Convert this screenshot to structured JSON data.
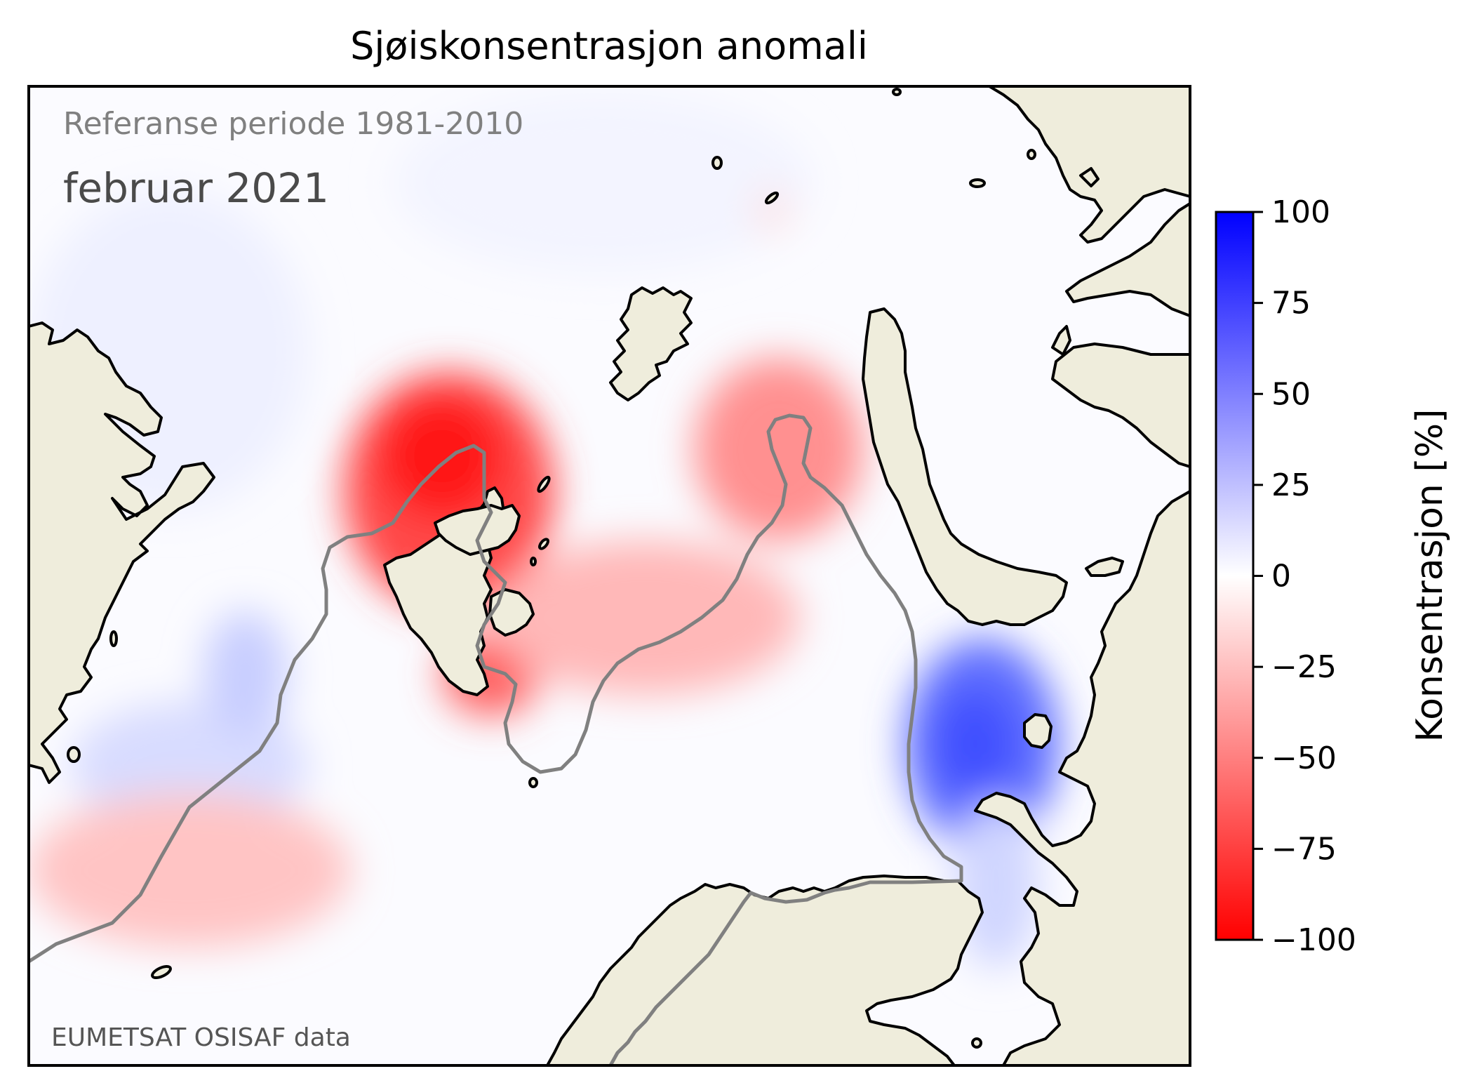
{
  "title": "Sjøiskonsentrasjon anomali",
  "reference_label": "Referanse periode 1981-2010",
  "month_label": "februar 2021",
  "source_credit": "EUMETSAT OSISAF data",
  "colorbar": {
    "label": "Konsentrasjon [%]",
    "min": -100,
    "max": 100,
    "ticks": [
      "100",
      "75",
      "50",
      "25",
      "0",
      "−25",
      "−50",
      "−75",
      "−100"
    ],
    "colors": {
      "negative": "#ff0000",
      "zero": "#ffffff",
      "positive": "#0000ff"
    }
  },
  "colors": {
    "land": "#efeddc",
    "coastline": "#000000",
    "ice_edge": "#808080",
    "frame": "#000000"
  }
}
